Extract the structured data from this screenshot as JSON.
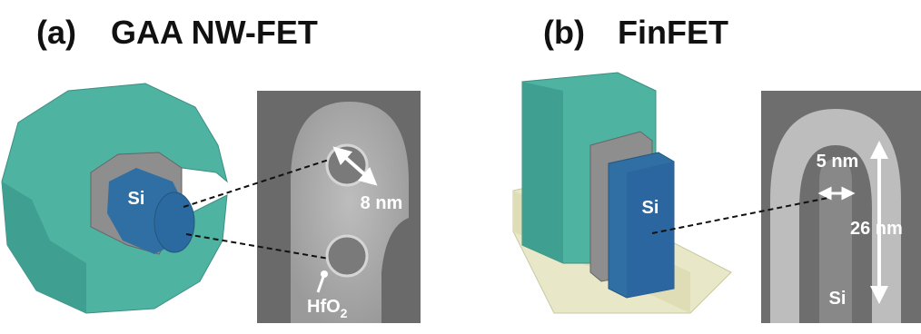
{
  "panel_a": {
    "label": "(a)",
    "title": "GAA NW-FET",
    "si_label": "Si",
    "dimension": "8 nm",
    "hfo2": {
      "base": "HfO",
      "sub": "2"
    }
  },
  "panel_b": {
    "label": "(b)",
    "title": "FinFET",
    "si_label": "Si",
    "width_dimension": "5 nm",
    "height_dimension": "26 nm",
    "tem_si_label": "Si"
  }
}
